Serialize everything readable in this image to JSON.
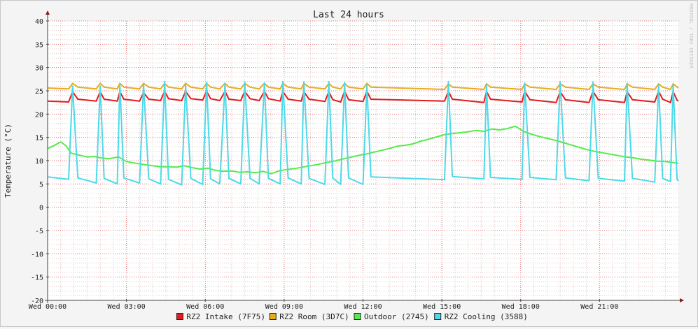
{
  "watermark": "RRDTOOL / TOBI OETIKER",
  "colors": {
    "background": "#f4f4f4",
    "plot_area": "#ffffff",
    "minor_grid": "#e3c8c8",
    "major_grid": "#e07070",
    "axis": "#444444",
    "arrow": "#8b1a1a"
  },
  "chart_data": {
    "type": "line",
    "title": "Last 24 hours",
    "ylabel": "Temperature (°C)",
    "xlabel": "",
    "ylim": [
      -20,
      40
    ],
    "xlim": [
      0,
      24
    ],
    "grid": true,
    "legend_position": "bottom",
    "y_ticks": [
      40,
      35,
      30,
      25,
      20,
      15,
      10,
      5,
      0,
      -5,
      -10,
      -15,
      -20
    ],
    "x_ticks": [
      {
        "t": 0,
        "label": "Wed 00:00"
      },
      {
        "t": 3,
        "label": "Wed 03:00"
      },
      {
        "t": 6,
        "label": "Wed 06:00"
      },
      {
        "t": 9,
        "label": "Wed 09:00"
      },
      {
        "t": 12,
        "label": "Wed 12:00"
      },
      {
        "t": 15,
        "label": "Wed 15:00"
      },
      {
        "t": 18,
        "label": "Wed 18:00"
      },
      {
        "t": 21,
        "label": "Wed 21:00"
      }
    ],
    "series": [
      {
        "name": "RZ2 Intake (7F75)",
        "color": "#e41a1c",
        "x": [
          0.0,
          0.8,
          0.95,
          1.15,
          1.85,
          2.0,
          2.15,
          2.65,
          2.75,
          2.9,
          3.5,
          3.65,
          3.85,
          4.3,
          4.45,
          4.6,
          5.1,
          5.25,
          5.45,
          5.9,
          6.05,
          6.2,
          6.55,
          6.75,
          6.9,
          7.35,
          7.5,
          7.7,
          8.05,
          8.25,
          8.4,
          8.85,
          8.95,
          9.15,
          9.65,
          9.75,
          9.95,
          10.55,
          10.7,
          10.85,
          11.15,
          11.3,
          11.45,
          12.0,
          12.15,
          12.3,
          15.1,
          15.25,
          15.4,
          16.6,
          16.7,
          16.85,
          18.05,
          18.15,
          18.35,
          19.35,
          19.5,
          19.7,
          20.6,
          20.75,
          20.95,
          21.95,
          22.05,
          22.25,
          23.1,
          23.25,
          23.4,
          23.7,
          23.8,
          23.95,
          24.0
        ],
        "y": [
          22.8,
          22.6,
          24.8,
          23.2,
          22.8,
          24.8,
          23.2,
          22.8,
          24.8,
          23.2,
          22.8,
          24.6,
          23.2,
          22.9,
          24.9,
          23.3,
          22.9,
          24.9,
          23.3,
          23.0,
          24.9,
          23.3,
          22.9,
          24.9,
          23.2,
          22.9,
          24.9,
          23.3,
          22.9,
          24.9,
          23.3,
          22.8,
          24.9,
          23.2,
          22.8,
          24.8,
          23.2,
          22.7,
          24.8,
          23.1,
          22.6,
          24.9,
          23.1,
          22.7,
          24.9,
          23.2,
          22.8,
          24.9,
          23.2,
          22.5,
          24.9,
          23.2,
          22.6,
          24.9,
          23.1,
          22.5,
          24.8,
          23.1,
          22.5,
          24.9,
          23.1,
          22.5,
          24.8,
          23.1,
          22.6,
          24.9,
          23.2,
          22.5,
          24.8,
          23.0,
          22.8
        ]
      },
      {
        "name": "RZ2 Room (3D7C)",
        "color": "#e4ad1c",
        "x": [
          0.0,
          0.8,
          0.95,
          1.15,
          1.85,
          2.0,
          2.15,
          2.65,
          2.75,
          2.9,
          3.5,
          3.65,
          3.85,
          4.3,
          4.45,
          4.6,
          5.1,
          5.25,
          5.45,
          5.9,
          6.05,
          6.2,
          6.55,
          6.75,
          6.9,
          7.35,
          7.5,
          7.7,
          8.05,
          8.25,
          8.4,
          8.85,
          8.95,
          9.15,
          9.65,
          9.75,
          9.95,
          10.55,
          10.7,
          10.85,
          11.15,
          11.3,
          11.45,
          12.0,
          12.15,
          12.3,
          15.1,
          15.25,
          15.4,
          16.6,
          16.7,
          16.85,
          18.05,
          18.15,
          18.35,
          19.35,
          19.5,
          19.7,
          20.6,
          20.75,
          20.95,
          21.95,
          22.05,
          22.25,
          23.1,
          23.25,
          23.4,
          23.7,
          23.8,
          23.95,
          24.0
        ],
        "y": [
          25.6,
          25.4,
          26.6,
          25.8,
          25.4,
          26.6,
          25.8,
          25.4,
          26.6,
          25.8,
          25.4,
          26.6,
          25.8,
          25.4,
          26.6,
          25.8,
          25.4,
          26.6,
          25.8,
          25.4,
          26.6,
          25.8,
          25.4,
          26.6,
          25.8,
          25.4,
          26.6,
          25.8,
          25.4,
          26.6,
          25.8,
          25.4,
          26.6,
          25.8,
          25.4,
          26.6,
          25.8,
          25.4,
          26.6,
          25.8,
          25.4,
          26.6,
          25.8,
          25.4,
          26.6,
          25.8,
          25.3,
          26.5,
          25.8,
          25.3,
          26.5,
          25.8,
          25.3,
          26.5,
          25.8,
          25.3,
          26.5,
          25.8,
          25.3,
          26.5,
          25.8,
          25.3,
          26.5,
          25.8,
          25.3,
          26.5,
          25.8,
          25.3,
          26.5,
          25.8,
          25.6
        ]
      },
      {
        "name": "Outdoor (2745)",
        "color": "#54ec48",
        "x": [
          0.0,
          0.3,
          0.5,
          0.7,
          0.9,
          1.2,
          1.5,
          1.8,
          2.0,
          2.3,
          2.7,
          3.0,
          3.3,
          3.6,
          4.0,
          4.3,
          4.6,
          4.9,
          5.2,
          5.5,
          5.8,
          6.1,
          6.4,
          6.7,
          7.0,
          7.3,
          7.6,
          7.9,
          8.2,
          8.5,
          8.8,
          9.1,
          9.4,
          9.7,
          10.0,
          10.3,
          10.6,
          10.9,
          11.2,
          11.5,
          11.8,
          12.1,
          12.4,
          12.7,
          13.0,
          13.3,
          13.6,
          13.9,
          14.2,
          14.5,
          14.8,
          15.1,
          15.4,
          15.7,
          16.0,
          16.3,
          16.6,
          16.9,
          17.2,
          17.5,
          17.8,
          18.1,
          18.4,
          18.7,
          19.0,
          19.3,
          19.6,
          19.9,
          20.2,
          20.5,
          20.8,
          21.1,
          21.4,
          21.7,
          22.0,
          22.3,
          22.6,
          22.9,
          23.2,
          23.5,
          23.8,
          24.0
        ],
        "y": [
          12.6,
          13.4,
          14.0,
          13.2,
          11.6,
          11.2,
          10.8,
          10.9,
          10.6,
          10.4,
          10.8,
          9.8,
          9.5,
          9.2,
          8.9,
          8.7,
          8.7,
          8.6,
          8.9,
          8.5,
          8.2,
          8.4,
          7.9,
          7.7,
          7.8,
          7.5,
          7.6,
          7.4,
          7.7,
          7.2,
          7.8,
          8.1,
          8.3,
          8.6,
          8.9,
          9.2,
          9.6,
          9.9,
          10.3,
          10.7,
          11.1,
          11.4,
          11.8,
          12.2,
          12.6,
          13.1,
          13.3,
          13.6,
          14.2,
          14.6,
          15.1,
          15.6,
          15.8,
          16.0,
          16.2,
          16.5,
          16.3,
          16.8,
          16.6,
          16.9,
          17.4,
          16.3,
          15.7,
          15.2,
          14.8,
          14.4,
          13.9,
          13.4,
          12.9,
          12.4,
          12.0,
          11.7,
          11.4,
          11.1,
          10.8,
          10.6,
          10.3,
          10.1,
          9.9,
          9.8,
          9.6,
          9.4
        ]
      },
      {
        "name": "RZ2 Cooling (3588)",
        "color": "#4ed9e8",
        "x": [
          0.0,
          0.8,
          0.95,
          1.15,
          1.85,
          2.0,
          2.15,
          2.65,
          2.75,
          2.9,
          3.5,
          3.65,
          3.85,
          4.3,
          4.45,
          4.6,
          5.1,
          5.25,
          5.45,
          5.9,
          6.05,
          6.2,
          6.55,
          6.75,
          6.9,
          7.35,
          7.5,
          7.7,
          8.05,
          8.25,
          8.4,
          8.85,
          8.95,
          9.15,
          9.65,
          9.75,
          9.95,
          10.55,
          10.7,
          10.85,
          11.15,
          11.3,
          11.45,
          12.0,
          12.15,
          12.3,
          15.1,
          15.25,
          15.4,
          16.6,
          16.7,
          16.85,
          18.05,
          18.15,
          18.35,
          19.35,
          19.5,
          19.7,
          20.6,
          20.75,
          20.95,
          21.95,
          22.05,
          22.25,
          23.1,
          23.25,
          23.4,
          23.7,
          23.8,
          23.95,
          24.0
        ],
        "y": [
          6.5,
          6.0,
          26.0,
          6.3,
          5.2,
          26.0,
          6.2,
          5.0,
          26.5,
          6.3,
          5.2,
          26.5,
          6.1,
          5.0,
          27.0,
          6.0,
          4.8,
          26.2,
          6.2,
          4.9,
          26.8,
          6.1,
          5.0,
          26.6,
          6.2,
          5.0,
          26.9,
          6.2,
          5.0,
          26.7,
          6.2,
          5.0,
          27.0,
          6.3,
          5.0,
          26.9,
          6.2,
          4.9,
          27.0,
          6.3,
          4.9,
          26.8,
          6.3,
          4.9,
          26.2,
          6.5,
          5.9,
          27.0,
          6.6,
          6.1,
          26.2,
          6.4,
          6.0,
          26.7,
          6.4,
          5.9,
          27.0,
          6.3,
          5.7,
          26.9,
          6.2,
          5.6,
          26.6,
          6.2,
          5.4,
          26.2,
          6.2,
          5.5,
          26.3,
          6.0,
          5.6
        ]
      }
    ]
  }
}
